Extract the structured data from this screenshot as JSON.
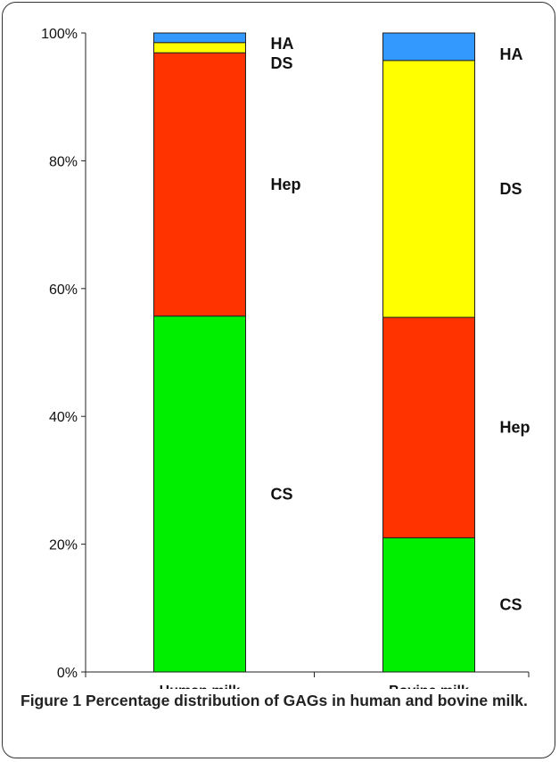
{
  "caption": {
    "label": "Figure 1",
    "text": "Percentage distribution of GAGs in human and bovine milk."
  },
  "chart_data": {
    "type": "bar",
    "stacked": true,
    "normalized": true,
    "categories": [
      "Human milk",
      "Bovine milk"
    ],
    "series": [
      {
        "name": "CS",
        "color": "#00ee00",
        "values": [
          55.7,
          21.0
        ]
      },
      {
        "name": "Hep",
        "color": "#ff3300",
        "values": [
          41.2,
          34.5
        ]
      },
      {
        "name": "DS",
        "color": "#ffff00",
        "values": [
          1.6,
          40.2
        ]
      },
      {
        "name": "HA",
        "color": "#3399ff",
        "values": [
          1.5,
          4.3
        ]
      }
    ],
    "ylim": [
      0,
      100
    ],
    "yticks": [
      0,
      20,
      40,
      60,
      80,
      100
    ],
    "ytick_labels": [
      "0%",
      "20%",
      "40%",
      "60%",
      "80%",
      "100%"
    ],
    "xlabel": "",
    "ylabel": "",
    "grid": false,
    "legend": "none"
  }
}
